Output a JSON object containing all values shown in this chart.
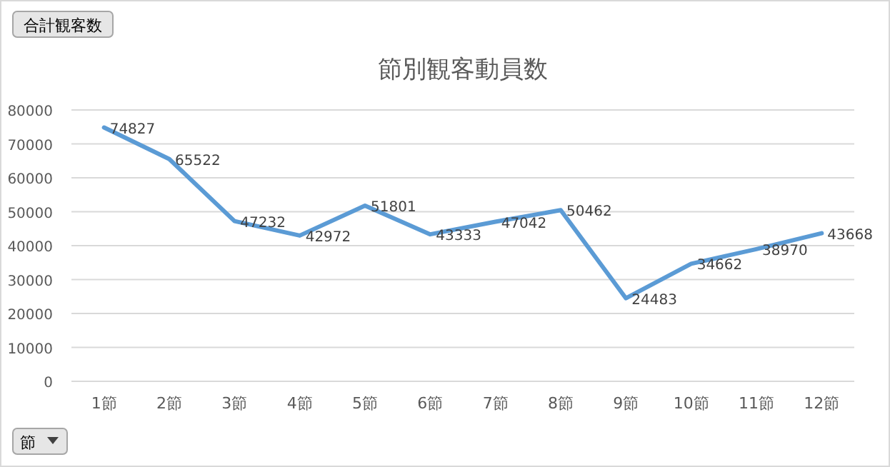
{
  "chart_data": {
    "type": "line",
    "title": "節別観客動員数",
    "categories": [
      "1節",
      "2節",
      "3節",
      "4節",
      "5節",
      "6節",
      "7節",
      "8節",
      "9節",
      "10節",
      "11節",
      "12節"
    ],
    "series": [
      {
        "color": "#5b9bd5",
        "values": [
          74827,
          65522,
          47232,
          42972,
          51801,
          43333,
          47042,
          50462,
          24483,
          34662,
          38970,
          43668
        ]
      }
    ],
    "ylim": [
      0,
      80000
    ],
    "yticks": [
      0,
      10000,
      20000,
      30000,
      40000,
      50000,
      60000,
      70000,
      80000
    ],
    "grid": "y",
    "data_labels": true,
    "marker": "none",
    "line_style": "solid",
    "annotations": [
      "合計観客数",
      "節"
    ]
  }
}
